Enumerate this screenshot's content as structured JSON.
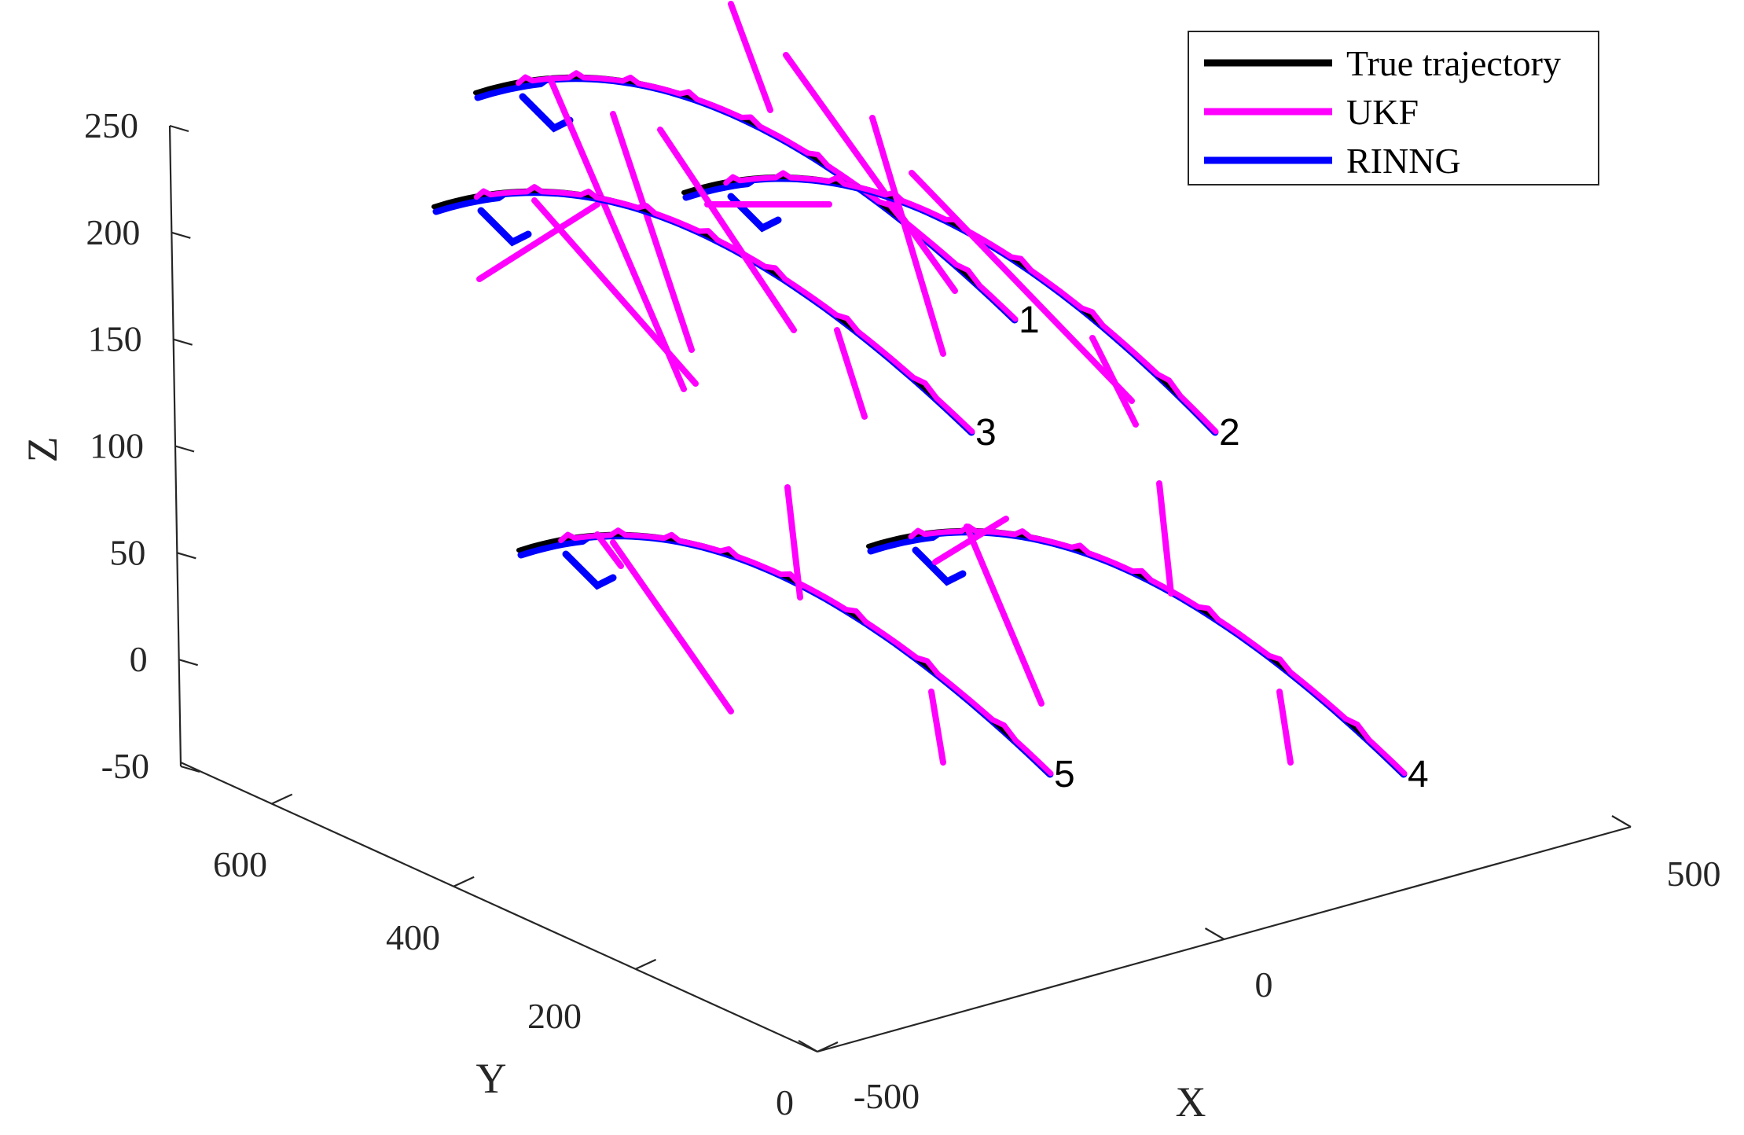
{
  "chart_data": {
    "type": "line",
    "subtype": "3d-trajectories",
    "title": "",
    "xlabel": "X",
    "ylabel": "Y",
    "zlabel": "Z",
    "xlim": [
      -500,
      500
    ],
    "ylim": [
      0,
      700
    ],
    "zlim": [
      -50,
      250
    ],
    "x_ticks": [
      "-500",
      "0",
      "500"
    ],
    "y_ticks": [
      "0",
      "200",
      "400",
      "600"
    ],
    "z_ticks": [
      "-50",
      "0",
      "50",
      "100",
      "150",
      "200",
      "250"
    ],
    "grid": false,
    "legend_position": "top-right",
    "legend": [
      "True trajectory",
      "UKF",
      "RINNG"
    ],
    "colors": {
      "True trajectory": "#000000",
      "UKF": "#ff00ff",
      "RINNG": "#0000ff",
      "axes": "#262626"
    },
    "series": [
      {
        "name": "True trajectory",
        "style": "solid"
      },
      {
        "name": "UKF",
        "style": "solid"
      },
      {
        "name": "RINNG",
        "style": "solid"
      }
    ],
    "trajectories": [
      {
        "label": "1",
        "x": -130,
        "y": 560,
        "z_start": 220,
        "z_end": 130,
        "x_end": 120
      },
      {
        "label": "2",
        "x": 30,
        "y": 560,
        "z_start": 220,
        "z_end": 90,
        "x_end": 280
      },
      {
        "label": "3",
        "x": -130,
        "y": 560,
        "z_start": 175,
        "z_end": 90,
        "x_end": 100
      },
      {
        "label": "4",
        "x": 180,
        "y": 560,
        "z_start": 40,
        "z_end": -60,
        "x_end": 400
      },
      {
        "label": "5",
        "x": -60,
        "y": 560,
        "z_start": 40,
        "z_end": -60,
        "x_end": 150
      }
    ]
  }
}
